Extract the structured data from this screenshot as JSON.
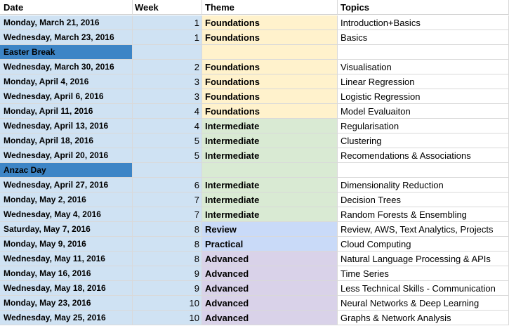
{
  "headers": {
    "date": "Date",
    "week": "Week",
    "theme": "Theme",
    "topics": "Topics"
  },
  "colors": {
    "date_cell": "#cfe2f3",
    "break_cell": "#3d85c6",
    "Foundations": "#fff2cc",
    "Intermediate": "#d9ead3",
    "Review": "#c9daf8",
    "Practical": "#c9daf8",
    "Advanced": "#d9d2e9"
  },
  "rows": [
    {
      "date": "Monday, March 21, 2016",
      "week": "1",
      "theme": "Foundations",
      "topic": "Introduction+Basics"
    },
    {
      "date": "Wednesday, March 23, 2016",
      "week": "1",
      "theme": "Foundations",
      "topic": "Basics"
    },
    {
      "date": "Easter Break",
      "week": "",
      "theme": "",
      "topic": "",
      "break": true,
      "band": "Foundations"
    },
    {
      "date": "Wednesday, March 30, 2016",
      "week": "2",
      "theme": "Foundations",
      "topic": "Visualisation"
    },
    {
      "date": "Monday, April 4, 2016",
      "week": "3",
      "theme": "Foundations",
      "topic": "Linear Regression"
    },
    {
      "date": "Wednesday, April 6, 2016",
      "week": "3",
      "theme": "Foundations",
      "topic": "Logistic Regression"
    },
    {
      "date": "Monday, April 11, 2016",
      "week": "4",
      "theme": "Foundations",
      "topic": "Model Evaluaiton"
    },
    {
      "date": "Wednesday, April 13, 2016",
      "week": "4",
      "theme": "Intermediate",
      "topic": "Regularisation"
    },
    {
      "date": "Monday, April 18, 2016",
      "week": "5",
      "theme": "Intermediate",
      "topic": "Clustering"
    },
    {
      "date": "Wednesday, April 20, 2016",
      "week": "5",
      "theme": "Intermediate",
      "topic": "Recomendations & Associations"
    },
    {
      "date": "Anzac Day",
      "week": "",
      "theme": "",
      "topic": "",
      "break": true,
      "band": "Intermediate"
    },
    {
      "date": "Wednesday, April 27, 2016",
      "week": "6",
      "theme": "Intermediate",
      "topic": "Dimensionality Reduction"
    },
    {
      "date": "Monday, May 2, 2016",
      "week": "7",
      "theme": "Intermediate",
      "topic": "Decision Trees"
    },
    {
      "date": "Wednesday, May 4, 2016",
      "week": "7",
      "theme": "Intermediate",
      "topic": "Random Forests & Ensembling"
    },
    {
      "date": "Saturday, May 7, 2016",
      "week": "8",
      "theme": "Review",
      "topic": "Review, AWS, Text Analytics, Projects"
    },
    {
      "date": "Monday, May 9, 2016",
      "week": "8",
      "theme": "Practical",
      "topic": "Cloud Computing"
    },
    {
      "date": "Wednesday, May 11, 2016",
      "week": "8",
      "theme": "Advanced",
      "topic": "Natural Language Processing & APIs"
    },
    {
      "date": "Monday, May 16, 2016",
      "week": "9",
      "theme": "Advanced",
      "topic": "Time Series"
    },
    {
      "date": "Wednesday, May 18, 2016",
      "week": "9",
      "theme": "Advanced",
      "topic": "Less Technical Skills - Communication"
    },
    {
      "date": "Monday, May 23, 2016",
      "week": "10",
      "theme": "Advanced",
      "topic": "Neural Networks & Deep Learning"
    },
    {
      "date": "Wednesday, May 25, 2016",
      "week": "10",
      "theme": "Advanced",
      "topic": "Graphs & Network Analysis"
    }
  ]
}
